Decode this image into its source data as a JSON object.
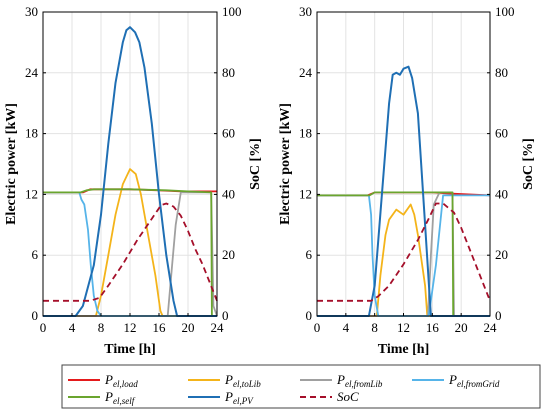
{
  "chart_data": [
    {
      "type": "line",
      "panel": "left",
      "xlabel": "Time [h]",
      "ylabel_left": "Electric power [kW]",
      "ylabel_right": "SoC [%]",
      "xlim": [
        0,
        24
      ],
      "ylim_left": [
        0,
        30
      ],
      "ylim_right": [
        0,
        100
      ],
      "xticks": [
        0,
        4,
        8,
        12,
        16,
        20,
        24
      ],
      "yticks_left": [
        0,
        6,
        12,
        18,
        24,
        30
      ],
      "yticks_right": [
        0,
        20,
        40,
        60,
        80,
        100
      ],
      "grid": true,
      "series": [
        {
          "key": "load",
          "axis": "left",
          "x": [
            0,
            5.5,
            6.5,
            8,
            12,
            16,
            19,
            23.3,
            24
          ],
          "y": [
            12.2,
            12.2,
            12.5,
            12.5,
            12.5,
            12.4,
            12.3,
            12.3,
            12.3
          ]
        },
        {
          "key": "toLib",
          "axis": "left",
          "x": [
            0,
            7.3,
            8,
            9,
            10,
            11,
            12,
            12.8,
            13.5,
            14.5,
            15.5,
            16.2,
            16.5,
            24
          ],
          "y": [
            0,
            0,
            2,
            6,
            10,
            13,
            14.5,
            14,
            12,
            8,
            4,
            0.5,
            0,
            0
          ]
        },
        {
          "key": "fromLib",
          "axis": "left",
          "x": [
            0,
            17.2,
            17.8,
            18.3,
            19,
            23.2,
            23.5,
            24
          ],
          "y": [
            0,
            0,
            5,
            9,
            12.2,
            12.2,
            1,
            0
          ]
        },
        {
          "key": "fromGrid",
          "axis": "left",
          "x": [
            0,
            5,
            5.3,
            5.7,
            6.2,
            6.6,
            7,
            7.5,
            8,
            24
          ],
          "y": [
            12.2,
            12.2,
            11.5,
            11,
            8.5,
            5,
            2,
            0.5,
            0,
            0
          ]
        },
        {
          "key": "self",
          "axis": "left",
          "x": [
            0,
            5.2,
            6,
            7,
            8,
            12,
            17,
            20,
            23.2,
            23.3,
            24
          ],
          "y": [
            12.2,
            12.2,
            12.4,
            12.5,
            12.5,
            12.5,
            12.4,
            12.3,
            12.2,
            0,
            0
          ]
        },
        {
          "key": "PV",
          "axis": "left",
          "x": [
            0,
            4.5,
            5.5,
            7,
            8,
            9,
            10,
            11,
            11.5,
            12,
            12.7,
            13.3,
            14,
            15,
            16,
            17,
            18,
            18.5,
            24
          ],
          "y": [
            0,
            0,
            1,
            5,
            10,
            17,
            23,
            27,
            28.2,
            28.5,
            28,
            27,
            24.5,
            19,
            12,
            6,
            1.5,
            0,
            0
          ]
        },
        {
          "key": "SoC",
          "axis": "right",
          "x": [
            0,
            6.5,
            7.8,
            9,
            11,
            13,
            15,
            16.3,
            17,
            18,
            19,
            20,
            21,
            22,
            23,
            24
          ],
          "y": [
            5,
            5,
            6,
            10,
            17,
            25,
            32,
            36.5,
            37,
            36,
            33,
            28,
            22,
            17,
            11,
            5
          ]
        }
      ]
    },
    {
      "type": "line",
      "panel": "right",
      "xlabel": "Time [h]",
      "ylabel_left": "Electric power [kW]",
      "ylabel_right": "SoC [%]",
      "xlim": [
        0,
        24
      ],
      "ylim_left": [
        0,
        30
      ],
      "ylim_right": [
        0,
        100
      ],
      "xticks": [
        0,
        4,
        8,
        12,
        16,
        20,
        24
      ],
      "yticks_left": [
        0,
        6,
        12,
        18,
        24,
        30
      ],
      "yticks_right": [
        0,
        20,
        40,
        60,
        80,
        100
      ],
      "grid": true,
      "series": [
        {
          "key": "load",
          "axis": "left",
          "x": [
            0,
            7,
            8,
            12,
            16,
            18,
            24
          ],
          "y": [
            11.9,
            11.9,
            12.2,
            12.2,
            12.2,
            12.1,
            11.9
          ]
        },
        {
          "key": "toLib",
          "axis": "left",
          "x": [
            0,
            8.3,
            8.8,
            9.5,
            10,
            11,
            12,
            13,
            13.5,
            14,
            15,
            15.3,
            24
          ],
          "y": [
            0,
            0,
            4,
            8,
            9.5,
            10.5,
            10,
            11,
            10,
            8,
            3,
            0,
            0
          ]
        },
        {
          "key": "fromLib",
          "axis": "left",
          "x": [
            0,
            15.4,
            15.8,
            16.2,
            17,
            18.8,
            19,
            24
          ],
          "y": [
            0,
            0,
            6,
            11,
            12.2,
            12.2,
            0,
            0
          ]
        },
        {
          "key": "fromGrid",
          "axis": "left",
          "x": [
            0,
            7.2,
            7.5,
            7.7,
            8,
            8.5,
            15.5,
            16.5,
            17.5,
            24
          ],
          "y": [
            11.9,
            11.9,
            10,
            6,
            2,
            0,
            0,
            5,
            11.9,
            11.9
          ]
        },
        {
          "key": "self",
          "axis": "left",
          "x": [
            0,
            7.3,
            8,
            12,
            16,
            18.8,
            18.9,
            24
          ],
          "y": [
            11.9,
            11.9,
            12.2,
            12.2,
            12.2,
            12.2,
            0,
            0
          ]
        },
        {
          "key": "PV",
          "axis": "left",
          "x": [
            0,
            7.2,
            8,
            9,
            10,
            10.5,
            11,
            11.5,
            12,
            12.7,
            13.2,
            14,
            15,
            15.8,
            24
          ],
          "y": [
            0,
            0,
            3,
            12,
            21,
            23.8,
            24,
            23.8,
            24.4,
            24.6,
            23.5,
            20,
            9,
            0,
            0
          ]
        },
        {
          "key": "SoC",
          "axis": "right",
          "x": [
            0,
            7.5,
            8.5,
            10,
            12,
            14,
            15.5,
            16.5,
            17.5,
            19,
            20,
            21,
            22,
            23,
            24
          ],
          "y": [
            5,
            5,
            6.5,
            10,
            17,
            25,
            32,
            37,
            37,
            34,
            29,
            23,
            17,
            11,
            5
          ]
        }
      ]
    }
  ],
  "legend": [
    {
      "key": "load",
      "main": "P",
      "sub": "el,load",
      "color": "#e41a1c",
      "dash": "solid"
    },
    {
      "key": "toLib",
      "main": "P",
      "sub": "el,toLib",
      "color": "#f4b41a",
      "dash": "solid"
    },
    {
      "key": "fromLib",
      "main": "P",
      "sub": "el,fromLib",
      "color": "#a0a0a0",
      "dash": "solid"
    },
    {
      "key": "fromGrid",
      "main": "P",
      "sub": "el,fromGrid",
      "color": "#56b4e9",
      "dash": "solid"
    },
    {
      "key": "self",
      "main": "P",
      "sub": "el,self",
      "color": "#6aa52e",
      "dash": "solid"
    },
    {
      "key": "PV",
      "main": "P",
      "sub": "el,PV",
      "color": "#1f6fb4",
      "dash": "solid"
    },
    {
      "key": "SoC",
      "main": "SoC",
      "sub": "",
      "color": "#a50f2a",
      "dash": "dashed"
    }
  ]
}
